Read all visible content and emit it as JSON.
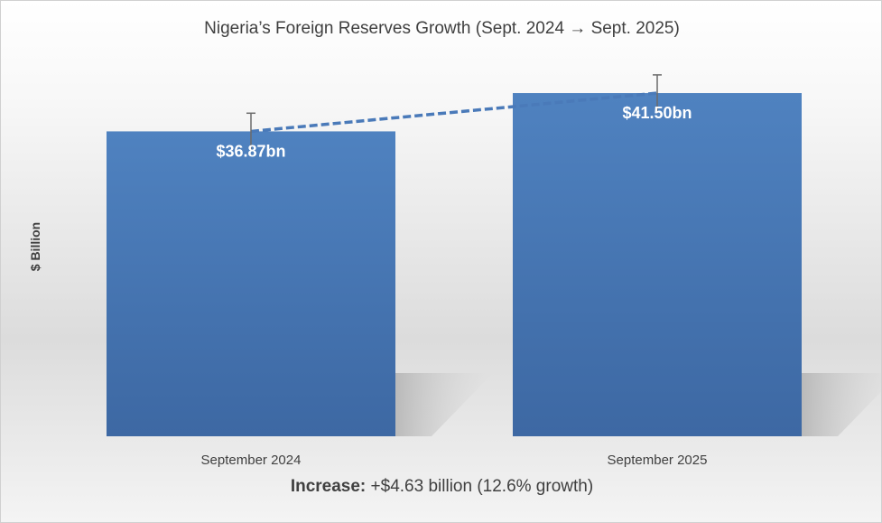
{
  "chart_data": {
    "type": "bar",
    "title": "Nigeria’s Foreign Reserves Growth (Sept. 2024 → Sept. 2025)",
    "ylabel": "$ Billion",
    "xlabel": "",
    "categories": [
      "September 2024",
      "September 2025"
    ],
    "values": [
      36.87,
      41.5
    ],
    "data_labels": [
      "$36.87bn",
      "$41.50bn"
    ],
    "error_plus": [
      2.2,
      2.2
    ],
    "ylim": [
      0,
      45
    ],
    "trendline": "dashed",
    "grid": false,
    "legend": "none",
    "bar_color": "#4a7ab9"
  },
  "footer": {
    "label": "Increase:",
    "text": " +$4.63 billion (12.6% growth)"
  }
}
